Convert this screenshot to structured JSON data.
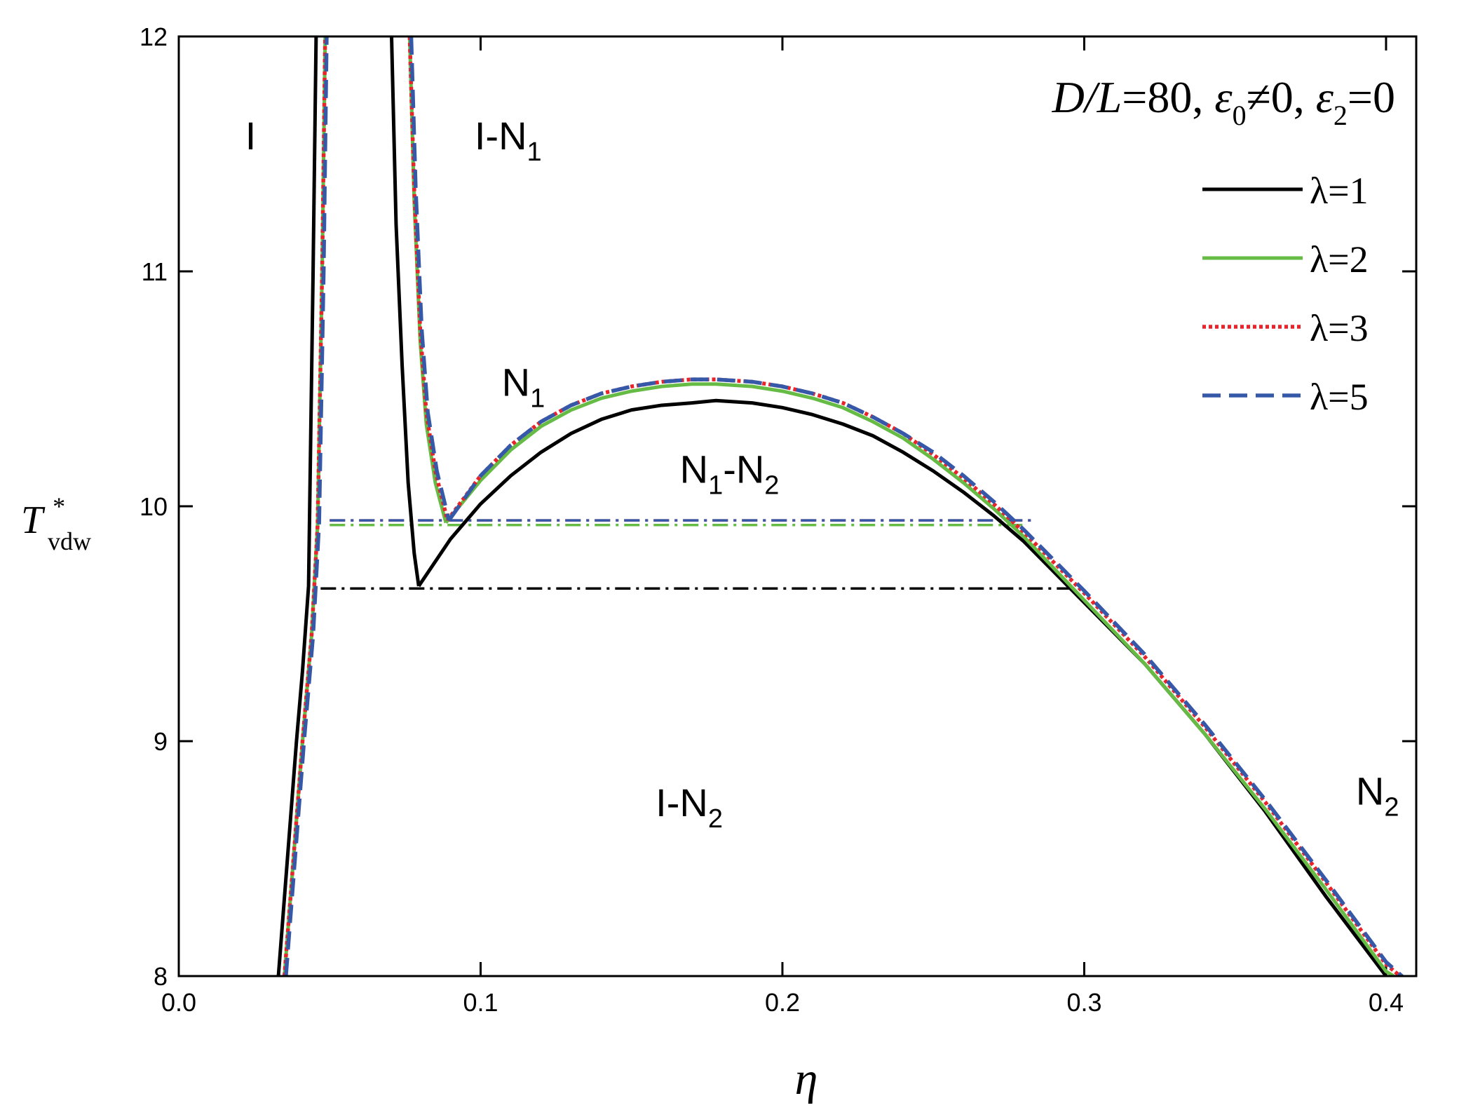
{
  "chart_data": {
    "type": "line",
    "annotation": {
      "ratio": "D/L",
      "ratio_value": "=80, ",
      "eps0": "ε",
      "eps0_sub": "0",
      "eps0_rel": "≠0, ",
      "eps2": "ε",
      "eps2_sub": "2",
      "eps2_rel": "=0"
    },
    "xlabel": "η",
    "ylabel": {
      "main": "T",
      "sup": "*",
      "sub": "vdw"
    },
    "xlim": [
      0.0,
      0.41
    ],
    "ylim": [
      8,
      12
    ],
    "xticks": [
      0.0,
      0.1,
      0.2,
      0.3,
      0.4
    ],
    "xtick_labels": [
      "0.0",
      "0.1",
      "0.2",
      "0.3",
      "0.4"
    ],
    "yticks": [
      8,
      9,
      10,
      11,
      12
    ],
    "ytick_labels": [
      "8",
      "9",
      "10",
      "11",
      "12"
    ],
    "legend_position": "top-right",
    "regions": [
      {
        "label": "I",
        "sub": "",
        "x": 0.022,
        "y": 11.52
      },
      {
        "label": "I-N",
        "sub": "1",
        "x": 0.098,
        "y": 11.52
      },
      {
        "label": "N",
        "sub": "1",
        "x": 0.107,
        "y": 10.47
      },
      {
        "label": "N",
        "sub": "1",
        "mid": "-N",
        "sub2": "2",
        "x": 0.166,
        "y": 10.1
      },
      {
        "label": "I-N",
        "sub": "2",
        "x": 0.158,
        "y": 8.68
      },
      {
        "label": "N",
        "sub": "2",
        "x": 0.39,
        "y": 8.73
      }
    ],
    "series": [
      {
        "name": "λ=1",
        "color": "#000000",
        "style": "solid",
        "tie_line": {
          "x": [
            0.047,
            0.295
          ],
          "y": [
            9.65,
            9.65
          ]
        },
        "segments": [
          {
            "x": [
              0.033,
              0.036,
              0.039,
              0.041,
              0.043,
              0.0445,
              0.0455
            ],
            "y": [
              8.0,
              8.5,
              9.0,
              9.3,
              9.66,
              11.0,
              12.0
            ]
          },
          {
            "x": [
              0.0705,
              0.072,
              0.074,
              0.076,
              0.078,
              0.0795
            ],
            "y": [
              12.0,
              11.2,
              10.6,
              10.1,
              9.8,
              9.66
            ]
          },
          {
            "x": [
              0.0795,
              0.09,
              0.1,
              0.11,
              0.12,
              0.13,
              0.14,
              0.15,
              0.16,
              0.17,
              0.178,
              0.19,
              0.2,
              0.21,
              0.22,
              0.23,
              0.24,
              0.25,
              0.26,
              0.27,
              0.28,
              0.29,
              0.3,
              0.32,
              0.34,
              0.36,
              0.38,
              0.4
            ],
            "y": [
              9.66,
              9.86,
              10.01,
              10.13,
              10.23,
              10.31,
              10.37,
              10.41,
              10.43,
              10.44,
              10.45,
              10.44,
              10.42,
              10.39,
              10.35,
              10.3,
              10.23,
              10.15,
              10.06,
              9.96,
              9.85,
              9.72,
              9.59,
              9.33,
              9.03,
              8.7,
              8.34,
              8.0
            ]
          }
        ]
      },
      {
        "name": "λ=2",
        "color": "#66bb44",
        "style": "solid",
        "tie_line": {
          "x": [
            0.05,
            0.28
          ],
          "y": [
            9.92,
            9.92
          ]
        },
        "segments": [
          {
            "x": [
              0.035,
              0.038,
              0.041,
              0.044,
              0.046,
              0.0475,
              0.0485
            ],
            "y": [
              8.0,
              8.5,
              9.0,
              9.45,
              9.92,
              11.0,
              12.0
            ]
          },
          {
            "x": [
              0.0765,
              0.078,
              0.08,
              0.082,
              0.085,
              0.0885
            ],
            "y": [
              12.0,
              11.3,
              10.7,
              10.35,
              10.1,
              9.93
            ]
          },
          {
            "x": [
              0.0885,
              0.1,
              0.11,
              0.12,
              0.13,
              0.14,
              0.15,
              0.16,
              0.17,
              0.178,
              0.19,
              0.2,
              0.21,
              0.22,
              0.23,
              0.24,
              0.25,
              0.26,
              0.27,
              0.28,
              0.3,
              0.32,
              0.34,
              0.36,
              0.38,
              0.4,
              0.405
            ],
            "y": [
              9.93,
              10.11,
              10.24,
              10.34,
              10.41,
              10.46,
              10.49,
              10.51,
              10.52,
              10.52,
              10.51,
              10.49,
              10.46,
              10.42,
              10.36,
              10.29,
              10.2,
              10.1,
              9.99,
              9.87,
              9.6,
              9.33,
              9.03,
              8.71,
              8.37,
              8.02,
              7.98
            ]
          }
        ]
      },
      {
        "name": "λ=3",
        "color": "#e8232a",
        "style": "dotted",
        "tie_line": {
          "x": [
            0.05,
            0.283
          ],
          "y": [
            9.94,
            9.94
          ]
        },
        "segments": [
          {
            "x": [
              0.035,
              0.038,
              0.041,
              0.044,
              0.046,
              0.0475,
              0.0485
            ],
            "y": [
              8.0,
              8.5,
              9.0,
              9.45,
              9.92,
              11.0,
              12.0
            ]
          },
          {
            "x": [
              0.0765,
              0.078,
              0.08,
              0.082,
              0.085,
              0.089
            ],
            "y": [
              12.0,
              11.35,
              10.75,
              10.4,
              10.15,
              9.94
            ]
          },
          {
            "x": [
              0.089,
              0.1,
              0.11,
              0.12,
              0.13,
              0.14,
              0.15,
              0.16,
              0.17,
              0.178,
              0.19,
              0.2,
              0.21,
              0.22,
              0.23,
              0.24,
              0.25,
              0.26,
              0.27,
              0.28,
              0.3,
              0.32,
              0.34,
              0.36,
              0.38,
              0.4,
              0.4065
            ],
            "y": [
              9.94,
              10.13,
              10.26,
              10.36,
              10.43,
              10.48,
              10.51,
              10.53,
              10.54,
              10.54,
              10.53,
              10.51,
              10.48,
              10.44,
              10.38,
              10.31,
              10.22,
              10.12,
              10.01,
              9.89,
              9.63,
              9.36,
              9.06,
              8.74,
              8.4,
              8.05,
              7.98
            ]
          }
        ]
      },
      {
        "name": "λ=5",
        "color": "#3658a8",
        "style": "dashed",
        "tie_line": {
          "x": [
            0.05,
            0.283
          ],
          "y": [
            9.94,
            9.94
          ]
        },
        "segments": [
          {
            "x": [
              0.0355,
              0.0385,
              0.0415,
              0.0445,
              0.0465,
              0.048,
              0.049
            ],
            "y": [
              8.0,
              8.5,
              9.0,
              9.45,
              9.93,
              11.0,
              12.0
            ]
          },
          {
            "x": [
              0.077,
              0.0785,
              0.0805,
              0.0825,
              0.0855,
              0.0895
            ],
            "y": [
              12.0,
              11.35,
              10.75,
              10.4,
              10.15,
              9.94
            ]
          },
          {
            "x": [
              0.0895,
              0.1,
              0.11,
              0.12,
              0.13,
              0.14,
              0.15,
              0.16,
              0.17,
              0.178,
              0.19,
              0.2,
              0.21,
              0.22,
              0.23,
              0.24,
              0.25,
              0.26,
              0.27,
              0.28,
              0.3,
              0.32,
              0.34,
              0.36,
              0.38,
              0.4,
              0.407
            ],
            "y": [
              9.94,
              10.13,
              10.26,
              10.36,
              10.43,
              10.48,
              10.51,
              10.53,
              10.54,
              10.54,
              10.53,
              10.51,
              10.48,
              10.44,
              10.38,
              10.31,
              10.23,
              10.13,
              10.02,
              9.9,
              9.64,
              9.37,
              9.07,
              8.75,
              8.41,
              8.06,
              7.98
            ]
          }
        ]
      }
    ]
  }
}
